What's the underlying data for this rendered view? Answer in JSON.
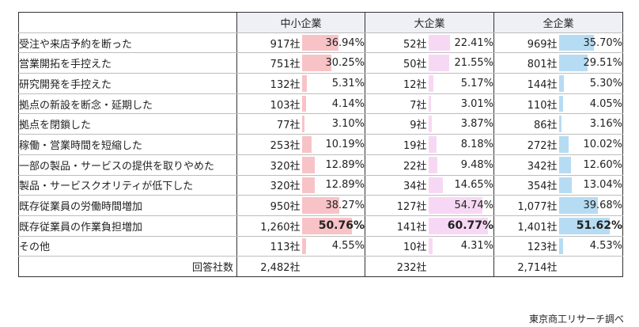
{
  "headers": {
    "corner": "",
    "sme": "中小企業",
    "large": "大企業",
    "all": "全企業"
  },
  "rows": [
    {
      "label": "受注や来店予約を断った",
      "sme_count": "917社",
      "sme_pct": "36.94%",
      "sme_value": 36.94,
      "large_count": "52社",
      "large_pct": "22.41%",
      "large_value": 22.41,
      "all_count": "969社",
      "all_pct": "35.70%",
      "all_value": 35.7
    },
    {
      "label": "営業開拓を手控えた",
      "sme_count": "751社",
      "sme_pct": "30.25%",
      "sme_value": 30.25,
      "large_count": "50社",
      "large_pct": "21.55%",
      "large_value": 21.55,
      "all_count": "801社",
      "all_pct": "29.51%",
      "all_value": 29.51
    },
    {
      "label": "研究開発を手控えた",
      "sme_count": "132社",
      "sme_pct": "5.31%",
      "sme_value": 5.31,
      "large_count": "12社",
      "large_pct": "5.17%",
      "large_value": 5.17,
      "all_count": "144社",
      "all_pct": "5.30%",
      "all_value": 5.3
    },
    {
      "label": "拠点の新設を断念・延期した",
      "sme_count": "103社",
      "sme_pct": "4.14%",
      "sme_value": 4.14,
      "large_count": "7社",
      "large_pct": "3.01%",
      "large_value": 3.01,
      "all_count": "110社",
      "all_pct": "4.05%",
      "all_value": 4.05
    },
    {
      "label": "拠点を閉鎖した",
      "sme_count": "77社",
      "sme_pct": "3.10%",
      "sme_value": 3.1,
      "large_count": "9社",
      "large_pct": "3.87%",
      "large_value": 3.87,
      "all_count": "86社",
      "all_pct": "3.16%",
      "all_value": 3.16
    },
    {
      "label": "稼働・営業時間を短縮した",
      "sme_count": "253社",
      "sme_pct": "10.19%",
      "sme_value": 10.19,
      "large_count": "19社",
      "large_pct": "8.18%",
      "large_value": 8.18,
      "all_count": "272社",
      "all_pct": "10.02%",
      "all_value": 10.02
    },
    {
      "label": "一部の製品・サービスの提供を取りやめた",
      "sme_count": "320社",
      "sme_pct": "12.89%",
      "sme_value": 12.89,
      "large_count": "22社",
      "large_pct": "9.48%",
      "large_value": 9.48,
      "all_count": "342社",
      "all_pct": "12.60%",
      "all_value": 12.6
    },
    {
      "label": "製品・サービスクオリティが低下した",
      "sme_count": "320社",
      "sme_pct": "12.89%",
      "sme_value": 12.89,
      "large_count": "34社",
      "large_pct": "14.65%",
      "large_value": 14.65,
      "all_count": "354社",
      "all_pct": "13.04%",
      "all_value": 13.04
    },
    {
      "label": "既存従業員の労働時間増加",
      "sme_count": "950社",
      "sme_pct": "38.27%",
      "sme_value": 38.27,
      "large_count": "127社",
      "large_pct": "54.74%",
      "large_value": 54.74,
      "all_count": "1,077社",
      "all_pct": "39.68%",
      "all_value": 39.68
    },
    {
      "label": "既存従業員の作業負担増加",
      "sme_count": "1,260社",
      "sme_pct": "50.76%",
      "sme_value": 50.76,
      "large_count": "141社",
      "large_pct": "60.77%",
      "large_value": 60.77,
      "all_count": "1,401社",
      "all_pct": "51.62%",
      "all_value": 51.62,
      "highlight": true
    },
    {
      "label": "その他",
      "sme_count": "113社",
      "sme_pct": "4.55%",
      "sme_value": 4.55,
      "large_count": "10社",
      "large_pct": "4.31%",
      "large_value": 4.31,
      "all_count": "123社",
      "all_pct": "4.53%",
      "all_value": 4.53
    }
  ],
  "totals": {
    "label": "回答社数",
    "sme": "2,482社",
    "large": "232社",
    "all": "2,714社"
  },
  "bar_scale_max": 61,
  "colors": {
    "sme_bar": "#f8c3c6",
    "large_bar": "#f7d8f4",
    "all_bar": "#b6dcf3",
    "header_bg": "#eef0f5"
  },
  "source": "東京商工リサーチ調べ"
}
